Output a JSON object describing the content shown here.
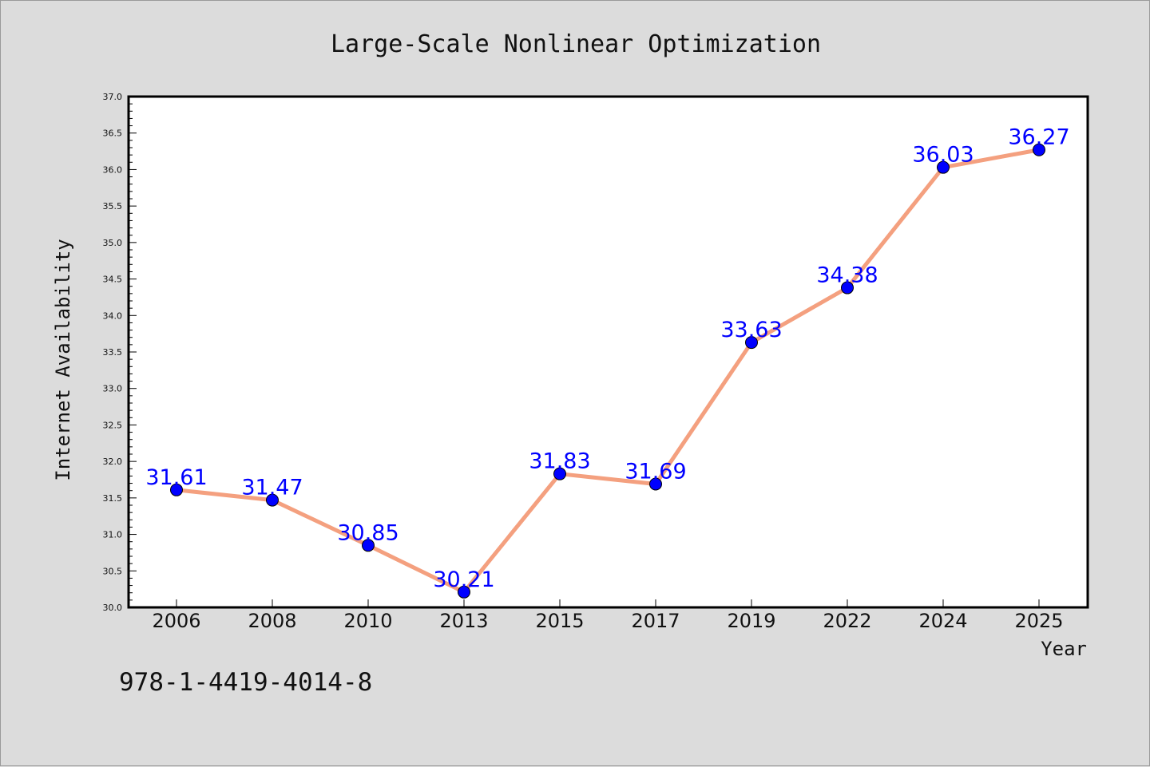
{
  "chart_data": {
    "type": "line",
    "title": "Large-Scale Nonlinear Optimization",
    "xlabel": "Year",
    "ylabel": "Internet Availability",
    "categories": [
      "2006",
      "2008",
      "2010",
      "2013",
      "2015",
      "2017",
      "2019",
      "2022",
      "2024",
      "2025"
    ],
    "series": [
      {
        "values": [
          31.61,
          31.47,
          30.85,
          30.21,
          31.83,
          31.69,
          33.63,
          34.38,
          36.03,
          36.27
        ],
        "labels": [
          "31.61",
          "31.47",
          "30.85",
          "30.21",
          "31.83",
          "31.69",
          "33.63",
          "34.38",
          "36.03",
          "36.27"
        ]
      }
    ],
    "ylim": [
      30.0,
      37.0
    ],
    "yticks": [
      "30.0",
      "30.5",
      "31.0",
      "31.5",
      "32.0",
      "32.5",
      "33.0",
      "33.5",
      "34.0",
      "34.5",
      "35.0",
      "35.5",
      "36.0",
      "36.5",
      "37.0"
    ],
    "grid": false,
    "colors": {
      "line": "#f4a07f",
      "marker": "#0000ff",
      "label": "#0000ff",
      "background": "#dcdcdc",
      "plot_background": "#ffffff"
    }
  },
  "footer_text": "978-1-4419-4014-8"
}
